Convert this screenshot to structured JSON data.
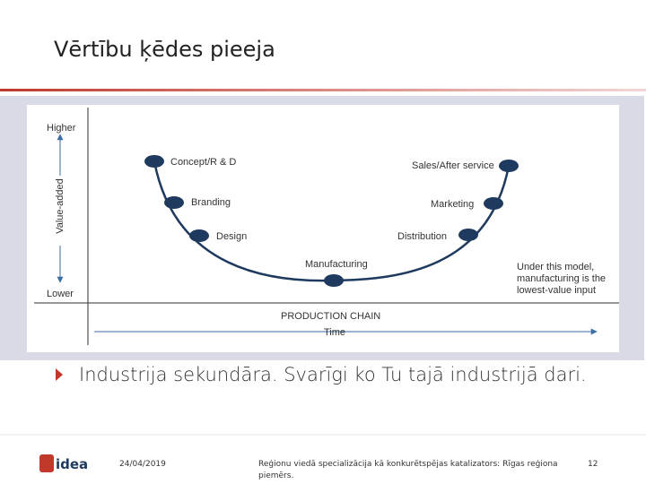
{
  "title": "Vērtību ķēdes pieeja",
  "diagram": {
    "y_axis_label": "Value-added",
    "higher": "Higher",
    "lower": "Lower",
    "nodes": [
      {
        "label": "Concept/R & D"
      },
      {
        "label": "Branding"
      },
      {
        "label": "Design"
      },
      {
        "label": "Manufacturing"
      },
      {
        "label": "Distribution"
      },
      {
        "label": "Marketing"
      },
      {
        "label": "Sales/After service"
      }
    ],
    "note": [
      "Under this model,",
      "manufacturing is the",
      "lowest-value input"
    ],
    "x_axis_label": "PRODUCTION CHAIN",
    "x_axis_sublabel": "Time"
  },
  "bullet": "Industrija sekundāra. Svarīgi ko Tu tajā industrijā dari.",
  "footer": {
    "logo": "idea",
    "date": "24/04/2019",
    "text": [
      "Reģionu viedā specializācija kā konkurētspējas katalizators: Rīgas reģiona",
      "piemērs."
    ],
    "page": "12"
  }
}
